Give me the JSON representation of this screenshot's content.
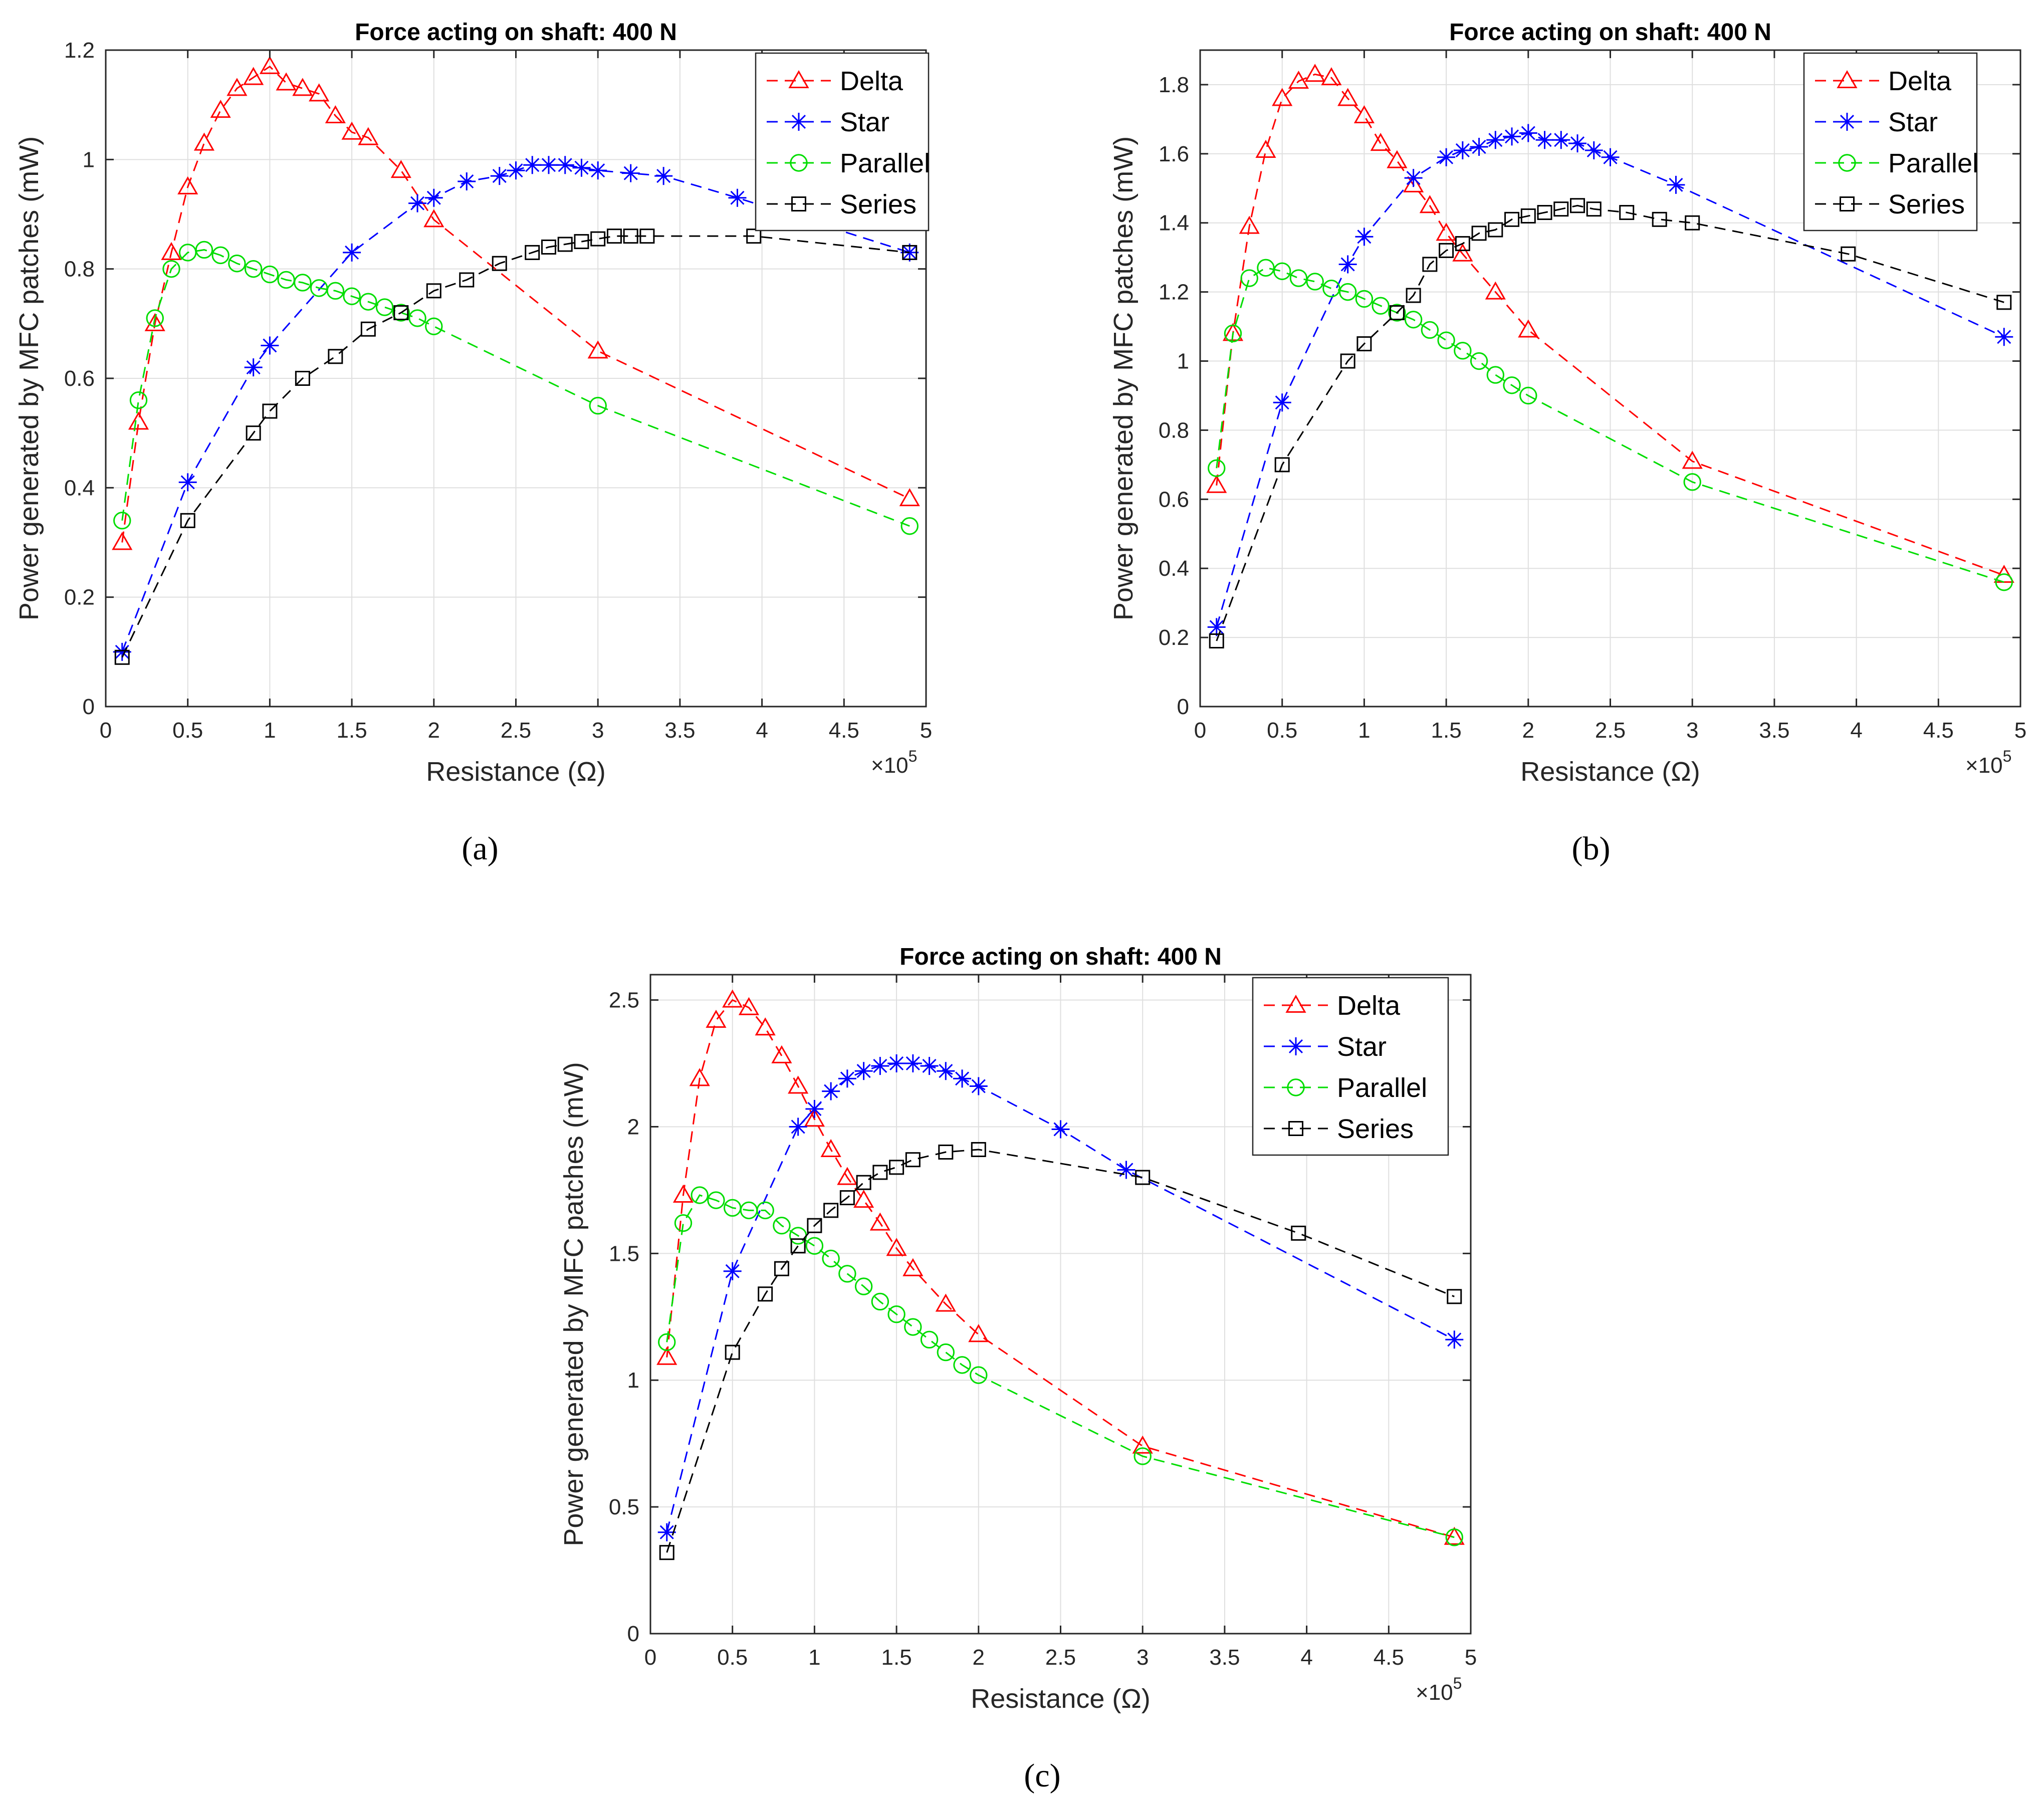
{
  "chart_data": [
    {
      "id": "a",
      "type": "line",
      "caption": "(a)",
      "title": "Force acting on shaft: 400 N",
      "xlabel": "Resistance (Ω)",
      "ylabel": "Power generated by MFC patches (mW)",
      "x_multiplier_label": "×10",
      "x_multiplier_exp": "5",
      "xlim": [
        0,
        5
      ],
      "ylim": [
        0,
        1.2
      ],
      "xticks": [
        0,
        0.5,
        1,
        1.5,
        2,
        2.5,
        3,
        3.5,
        4,
        4.5,
        5
      ],
      "xtick_labels": [
        "0",
        "0.5",
        "1",
        "1.5",
        "2",
        "2.5",
        "3",
        "3.5",
        "4",
        "4.5",
        "5"
      ],
      "yticks": [
        0,
        0.2,
        0.4,
        0.6,
        0.8,
        1,
        1.2
      ],
      "ytick_labels": [
        "0",
        "0.2",
        "0.4",
        "0.6",
        "0.8",
        "1",
        "1.2"
      ],
      "legend_position": "top-right",
      "series": [
        {
          "name": "Delta",
          "color": "#ff0000",
          "marker": "triangle",
          "x": [
            0.1,
            0.2,
            0.3,
            0.4,
            0.5,
            0.6,
            0.7,
            0.8,
            0.9,
            1.0,
            1.1,
            1.2,
            1.3,
            1.4,
            1.5,
            1.6,
            1.8,
            2.0,
            3.0,
            4.9
          ],
          "y": [
            0.3,
            0.52,
            0.7,
            0.83,
            0.95,
            1.03,
            1.09,
            1.13,
            1.15,
            1.17,
            1.14,
            1.13,
            1.12,
            1.08,
            1.05,
            1.04,
            0.98,
            0.89,
            0.65,
            0.38
          ]
        },
        {
          "name": "Star",
          "color": "#0000ff",
          "marker": "star",
          "x": [
            0.1,
            0.5,
            0.9,
            1.0,
            1.5,
            1.9,
            2.0,
            2.2,
            2.4,
            2.5,
            2.6,
            2.7,
            2.8,
            2.9,
            3.0,
            3.2,
            3.4,
            3.85,
            4.9
          ],
          "y": [
            0.1,
            0.41,
            0.62,
            0.66,
            0.83,
            0.92,
            0.93,
            0.96,
            0.97,
            0.98,
            0.99,
            0.99,
            0.99,
            0.985,
            0.98,
            0.975,
            0.97,
            0.93,
            0.83
          ]
        },
        {
          "name": "Parallel",
          "color": "#00dd00",
          "marker": "circle",
          "x": [
            0.1,
            0.2,
            0.3,
            0.4,
            0.5,
            0.6,
            0.7,
            0.8,
            0.9,
            1.0,
            1.1,
            1.2,
            1.3,
            1.4,
            1.5,
            1.6,
            1.7,
            1.8,
            1.9,
            2.0,
            3.0,
            4.9
          ],
          "y": [
            0.34,
            0.56,
            0.71,
            0.8,
            0.83,
            0.835,
            0.825,
            0.81,
            0.8,
            0.79,
            0.78,
            0.775,
            0.765,
            0.76,
            0.75,
            0.74,
            0.73,
            0.72,
            0.71,
            0.695,
            0.55,
            0.33
          ]
        },
        {
          "name": "Series",
          "color": "#000000",
          "marker": "square",
          "x": [
            0.1,
            0.5,
            0.9,
            1.0,
            1.2,
            1.4,
            1.6,
            1.8,
            2.0,
            2.2,
            2.4,
            2.6,
            2.7,
            2.8,
            2.9,
            3.0,
            3.1,
            3.2,
            3.3,
            3.95,
            4.9
          ],
          "y": [
            0.09,
            0.34,
            0.5,
            0.54,
            0.6,
            0.64,
            0.69,
            0.72,
            0.76,
            0.78,
            0.81,
            0.83,
            0.84,
            0.845,
            0.85,
            0.855,
            0.86,
            0.86,
            0.86,
            0.86,
            0.83
          ]
        }
      ]
    },
    {
      "id": "b",
      "type": "line",
      "caption": "(b)",
      "title": "Force acting on shaft: 400 N",
      "xlabel": "Resistance (Ω)",
      "ylabel": "Power generated by MFC patches (mW)",
      "x_multiplier_label": "×10",
      "x_multiplier_exp": "5",
      "xlim": [
        0,
        5
      ],
      "ylim": [
        0,
        1.9
      ],
      "xticks": [
        0,
        0.5,
        1,
        1.5,
        2,
        2.5,
        3,
        3.5,
        4,
        4.5,
        5
      ],
      "xtick_labels": [
        "0",
        "0.5",
        "1",
        "1.5",
        "2",
        "2.5",
        "3",
        "3.5",
        "4",
        "4.5",
        "5"
      ],
      "yticks": [
        0,
        0.2,
        0.4,
        0.6,
        0.8,
        1,
        1.2,
        1.4,
        1.6,
        1.8
      ],
      "ytick_labels": [
        "0",
        "0.2",
        "0.4",
        "0.6",
        "0.8",
        "1",
        "1.2",
        "1.4",
        "1.6",
        "1.8"
      ],
      "legend_position": "top-right",
      "series": [
        {
          "name": "Delta",
          "color": "#ff0000",
          "marker": "triangle",
          "x": [
            0.1,
            0.2,
            0.3,
            0.4,
            0.5,
            0.6,
            0.7,
            0.8,
            0.9,
            1.0,
            1.1,
            1.2,
            1.3,
            1.4,
            1.5,
            1.6,
            1.8,
            2.0,
            3.0,
            4.9
          ],
          "y": [
            0.64,
            1.08,
            1.39,
            1.61,
            1.76,
            1.81,
            1.83,
            1.82,
            1.76,
            1.71,
            1.63,
            1.58,
            1.51,
            1.45,
            1.37,
            1.31,
            1.2,
            1.09,
            0.71,
            0.38
          ]
        },
        {
          "name": "Star",
          "color": "#0000ff",
          "marker": "star",
          "x": [
            0.1,
            0.5,
            0.9,
            1.0,
            1.3,
            1.5,
            1.6,
            1.7,
            1.8,
            1.9,
            2.0,
            2.1,
            2.2,
            2.3,
            2.4,
            2.5,
            2.9,
            4.9
          ],
          "y": [
            0.23,
            0.88,
            1.28,
            1.36,
            1.53,
            1.59,
            1.61,
            1.62,
            1.64,
            1.65,
            1.66,
            1.64,
            1.64,
            1.63,
            1.61,
            1.59,
            1.51,
            1.07
          ]
        },
        {
          "name": "Parallel",
          "color": "#00dd00",
          "marker": "circle",
          "x": [
            0.1,
            0.2,
            0.3,
            0.4,
            0.5,
            0.6,
            0.7,
            0.8,
            0.9,
            1.0,
            1.1,
            1.2,
            1.3,
            1.4,
            1.5,
            1.6,
            1.7,
            1.8,
            1.9,
            2.0,
            3.0,
            4.9
          ],
          "y": [
            0.69,
            1.08,
            1.24,
            1.27,
            1.26,
            1.24,
            1.23,
            1.21,
            1.2,
            1.18,
            1.16,
            1.14,
            1.12,
            1.09,
            1.06,
            1.03,
            1.0,
            0.96,
            0.93,
            0.9,
            0.65,
            0.36
          ]
        },
        {
          "name": "Series",
          "color": "#000000",
          "marker": "square",
          "x": [
            0.1,
            0.5,
            0.9,
            1.0,
            1.2,
            1.3,
            1.4,
            1.5,
            1.6,
            1.7,
            1.8,
            1.9,
            2.0,
            2.1,
            2.2,
            2.3,
            2.4,
            2.6,
            2.8,
            3.0,
            3.95,
            4.9
          ],
          "y": [
            0.19,
            0.7,
            1.0,
            1.05,
            1.14,
            1.19,
            1.28,
            1.32,
            1.34,
            1.37,
            1.38,
            1.41,
            1.42,
            1.43,
            1.44,
            1.45,
            1.44,
            1.43,
            1.41,
            1.4,
            1.31,
            1.17
          ]
        }
      ]
    },
    {
      "id": "c",
      "type": "line",
      "caption": "(c)",
      "title": "Force acting on shaft: 400 N",
      "xlabel": "Resistance (Ω)",
      "ylabel": "Power generated by MFC patches (mW)",
      "x_multiplier_label": "×10",
      "x_multiplier_exp": "5",
      "xlim": [
        0,
        5
      ],
      "ylim": [
        0,
        2.6
      ],
      "xticks": [
        0,
        0.5,
        1,
        1.5,
        2,
        2.5,
        3,
        3.5,
        4,
        4.5,
        5
      ],
      "xtick_labels": [
        "0",
        "0.5",
        "1",
        "1.5",
        "2",
        "2.5",
        "3",
        "3.5",
        "4",
        "4.5",
        "5"
      ],
      "yticks": [
        0,
        0.5,
        1,
        1.5,
        2,
        2.5
      ],
      "ytick_labels": [
        "0",
        "0.5",
        "1",
        "1.5",
        "2",
        "2.5"
      ],
      "legend_position": "top-right",
      "series": [
        {
          "name": "Delta",
          "color": "#ff0000",
          "marker": "triangle",
          "x": [
            0.1,
            0.2,
            0.3,
            0.4,
            0.5,
            0.6,
            0.7,
            0.8,
            0.9,
            1.0,
            1.1,
            1.2,
            1.3,
            1.4,
            1.5,
            1.6,
            1.8,
            2.0,
            3.0,
            4.9
          ],
          "y": [
            1.09,
            1.73,
            2.19,
            2.42,
            2.5,
            2.47,
            2.39,
            2.28,
            2.16,
            2.03,
            1.91,
            1.8,
            1.71,
            1.62,
            1.52,
            1.44,
            1.3,
            1.18,
            0.74,
            0.38
          ]
        },
        {
          "name": "Star",
          "color": "#0000ff",
          "marker": "star",
          "x": [
            0.1,
            0.5,
            0.9,
            1.0,
            1.1,
            1.2,
            1.3,
            1.4,
            1.5,
            1.6,
            1.7,
            1.8,
            1.9,
            2.0,
            2.5,
            2.9,
            4.9
          ],
          "y": [
            0.4,
            1.43,
            2.0,
            2.07,
            2.14,
            2.19,
            2.22,
            2.24,
            2.25,
            2.25,
            2.24,
            2.22,
            2.19,
            2.16,
            1.99,
            1.83,
            1.16
          ]
        },
        {
          "name": "Parallel",
          "color": "#00dd00",
          "marker": "circle",
          "x": [
            0.1,
            0.2,
            0.3,
            0.4,
            0.5,
            0.6,
            0.7,
            0.8,
            0.9,
            1.0,
            1.1,
            1.2,
            1.3,
            1.4,
            1.5,
            1.6,
            1.7,
            1.8,
            1.9,
            2.0,
            3.0,
            4.9
          ],
          "y": [
            1.15,
            1.62,
            1.73,
            1.71,
            1.68,
            1.67,
            1.67,
            1.61,
            1.57,
            1.53,
            1.48,
            1.42,
            1.37,
            1.31,
            1.26,
            1.21,
            1.16,
            1.11,
            1.06,
            1.02,
            0.7,
            0.38
          ]
        },
        {
          "name": "Series",
          "color": "#000000",
          "marker": "square",
          "x": [
            0.1,
            0.5,
            0.7,
            0.8,
            0.9,
            1.0,
            1.1,
            1.2,
            1.3,
            1.4,
            1.5,
            1.6,
            1.8,
            2.0,
            3.0,
            3.95,
            4.9
          ],
          "y": [
            0.32,
            1.11,
            1.34,
            1.44,
            1.53,
            1.61,
            1.67,
            1.72,
            1.78,
            1.82,
            1.84,
            1.87,
            1.9,
            1.91,
            1.8,
            1.58,
            1.33
          ]
        }
      ]
    }
  ]
}
